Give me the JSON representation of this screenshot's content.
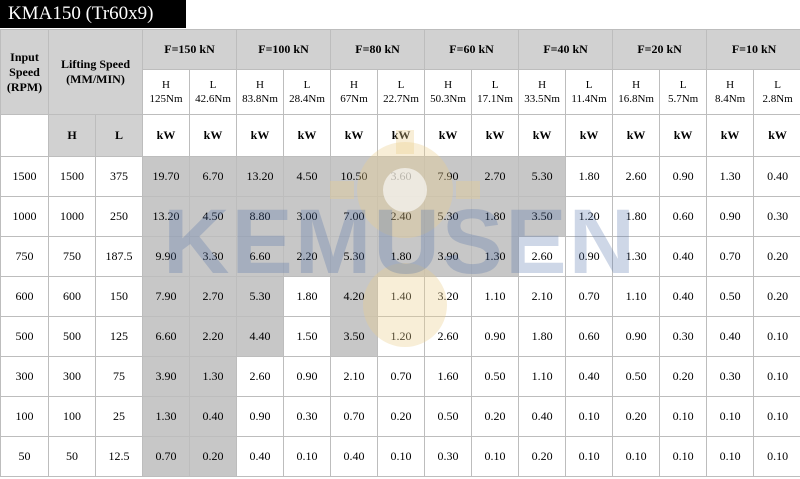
{
  "title": "KMA150 (Tr60x9)",
  "watermark": "KEMUSEN",
  "header": {
    "input_speed": "Input Speed (RPM)",
    "lifting_speed": "Lifting Speed (MM/MIN)",
    "h": "H",
    "l": "L",
    "unit": "kW"
  },
  "loads": [
    {
      "label": "F=150 kN",
      "h": "H",
      "h_torque": "125Nm",
      "l": "L",
      "l_torque": "42.6Nm"
    },
    {
      "label": "F=100 kN",
      "h": "H",
      "h_torque": "83.8Nm",
      "l": "L",
      "l_torque": "28.4Nm"
    },
    {
      "label": "F=80 kN",
      "h": "H",
      "h_torque": "67Nm",
      "l": "L",
      "l_torque": "22.7Nm"
    },
    {
      "label": "F=60 kN",
      "h": "H",
      "h_torque": "50.3Nm",
      "l": "L",
      "l_torque": "17.1Nm"
    },
    {
      "label": "F=40 kN",
      "h": "H",
      "h_torque": "33.5Nm",
      "l": "L",
      "l_torque": "11.4Nm"
    },
    {
      "label": "F=20 kN",
      "h": "H",
      "h_torque": "16.8Nm",
      "l": "L",
      "l_torque": "5.7Nm"
    },
    {
      "label": "F=10 kN",
      "h": "H",
      "h_torque": "8.4Nm",
      "l": "L",
      "l_torque": "2.8Nm"
    }
  ],
  "rows": [
    {
      "rpm": "1500",
      "h": "1500",
      "l": "375",
      "values": [
        "19.70",
        "6.70",
        "13.20",
        "4.50",
        "10.50",
        "3.60",
        "7.90",
        "2.70",
        "5.30",
        "1.80",
        "2.60",
        "0.90",
        "1.30",
        "0.40"
      ],
      "shaded": [
        true,
        true,
        true,
        true,
        true,
        true,
        true,
        true,
        true,
        false,
        false,
        false,
        false,
        false
      ]
    },
    {
      "rpm": "1000",
      "h": "1000",
      "l": "250",
      "values": [
        "13.20",
        "4.50",
        "8.80",
        "3.00",
        "7.00",
        "2.40",
        "5.30",
        "1.80",
        "3.50",
        "1.20",
        "1.80",
        "0.60",
        "0.90",
        "0.30"
      ],
      "shaded": [
        true,
        true,
        true,
        true,
        true,
        true,
        true,
        true,
        true,
        false,
        false,
        false,
        false,
        false
      ]
    },
    {
      "rpm": "750",
      "h": "750",
      "l": "187.5",
      "values": [
        "9.90",
        "3.30",
        "6.60",
        "2.20",
        "5.30",
        "1.80",
        "3.90",
        "1.30",
        "2.60",
        "0.90",
        "1.30",
        "0.40",
        "0.70",
        "0.20"
      ],
      "shaded": [
        true,
        true,
        true,
        true,
        true,
        true,
        true,
        true,
        false,
        false,
        false,
        false,
        false,
        false
      ]
    },
    {
      "rpm": "600",
      "h": "600",
      "l": "150",
      "values": [
        "7.90",
        "2.70",
        "5.30",
        "1.80",
        "4.20",
        "1.40",
        "3.20",
        "1.10",
        "2.10",
        "0.70",
        "1.10",
        "0.40",
        "0.50",
        "0.20"
      ],
      "shaded": [
        true,
        true,
        true,
        false,
        true,
        false,
        false,
        false,
        false,
        false,
        false,
        false,
        false,
        false
      ]
    },
    {
      "rpm": "500",
      "h": "500",
      "l": "125",
      "values": [
        "6.60",
        "2.20",
        "4.40",
        "1.50",
        "3.50",
        "1.20",
        "2.60",
        "0.90",
        "1.80",
        "0.60",
        "0.90",
        "0.30",
        "0.40",
        "0.10"
      ],
      "shaded": [
        true,
        true,
        true,
        false,
        true,
        false,
        false,
        false,
        false,
        false,
        false,
        false,
        false,
        false
      ]
    },
    {
      "rpm": "300",
      "h": "300",
      "l": "75",
      "values": [
        "3.90",
        "1.30",
        "2.60",
        "0.90",
        "2.10",
        "0.70",
        "1.60",
        "0.50",
        "1.10",
        "0.40",
        "0.50",
        "0.20",
        "0.30",
        "0.10"
      ],
      "shaded": [
        true,
        true,
        false,
        false,
        false,
        false,
        false,
        false,
        false,
        false,
        false,
        false,
        false,
        false
      ]
    },
    {
      "rpm": "100",
      "h": "100",
      "l": "25",
      "values": [
        "1.30",
        "0.40",
        "0.90",
        "0.30",
        "0.70",
        "0.20",
        "0.50",
        "0.20",
        "0.40",
        "0.10",
        "0.20",
        "0.10",
        "0.10",
        "0.10"
      ],
      "shaded": [
        true,
        true,
        false,
        false,
        false,
        false,
        false,
        false,
        false,
        false,
        false,
        false,
        false,
        false
      ]
    },
    {
      "rpm": "50",
      "h": "50",
      "l": "12.5",
      "values": [
        "0.70",
        "0.20",
        "0.40",
        "0.10",
        "0.40",
        "0.10",
        "0.30",
        "0.10",
        "0.20",
        "0.10",
        "0.10",
        "0.10",
        "0.10",
        "0.10"
      ],
      "shaded": [
        true,
        true,
        false,
        false,
        false,
        false,
        false,
        false,
        false,
        false,
        false,
        false,
        false,
        false
      ]
    }
  ]
}
